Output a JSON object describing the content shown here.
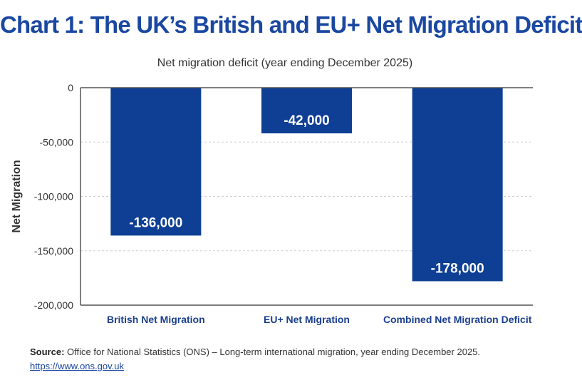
{
  "title": "Chart 1: The UK’s British and EU+ Net Migration Deficit",
  "subtitle": "Net migration deficit (year ending December 2025)",
  "source": {
    "label": "Source:",
    "text": "Office for National Statistics (ONS) – Long-term international migration, year ending December 2025.",
    "link": "https://www.ons.gov.uk"
  },
  "colors": {
    "bar": "#0e3f94",
    "title": "#1a47a1",
    "axis_text": "#333333",
    "category_text": "#1a3f8f",
    "grid": "#cfcfcf"
  },
  "chart_data": {
    "type": "bar",
    "categories": [
      "British Net Migration",
      "EU+ Net Migration",
      "Combined Net Migration Deficit"
    ],
    "values": [
      -136000,
      -42000,
      -178000
    ],
    "data_labels": [
      "-136,000",
      "-42,000",
      "-178,000"
    ],
    "title": "Net migration deficit (year ending December 2025)",
    "xlabel": "",
    "ylabel": "Net Migration",
    "ylim": [
      -200000,
      0
    ],
    "yticks": [
      0,
      -50000,
      -100000,
      -150000,
      -200000
    ],
    "ytick_labels": [
      "0",
      "-50,000",
      "-100,000",
      "-150,000",
      "-200,000"
    ],
    "grid": true
  }
}
